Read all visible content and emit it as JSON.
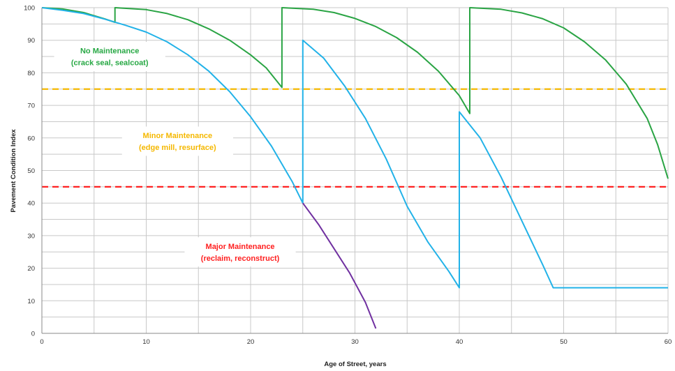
{
  "chart_data": {
    "type": "line",
    "xlabel": "Age of Street, years",
    "ylabel": "Pavement Condition Index",
    "xlim": [
      0,
      60
    ],
    "ylim": [
      0,
      100
    ],
    "x_ticks": [
      0,
      10,
      20,
      30,
      40,
      50,
      60
    ],
    "y_ticks": [
      0,
      10,
      20,
      30,
      40,
      50,
      60,
      70,
      80,
      90,
      100
    ],
    "grid": true,
    "thresholds": [
      {
        "value": 75,
        "color": "#f5b800",
        "style": "dashed"
      },
      {
        "value": 45,
        "color": "#ff2020",
        "style": "dashed"
      }
    ],
    "annotations": [
      {
        "lines": [
          "No Maintenance",
          "(crack seal, sealcoat)"
        ],
        "color": "#27a844",
        "x": 6.5,
        "y": 85
      },
      {
        "lines": [
          "Minor Maintenance",
          "(edge mill, resurface)"
        ],
        "color": "#f5b800",
        "x": 13,
        "y": 59
      },
      {
        "lines": [
          "Major Maintenance",
          "(reclaim, reconstruct)"
        ],
        "color": "#ff2020",
        "x": 19,
        "y": 25
      }
    ],
    "series": [
      {
        "color": "#2aa444",
        "points": [
          [
            0,
            100
          ],
          [
            2,
            99.6
          ],
          [
            4,
            98.5
          ],
          [
            6,
            96.6
          ],
          [
            7,
            95.5
          ],
          [
            7,
            100
          ],
          [
            10,
            99.4
          ],
          [
            12,
            98.2
          ],
          [
            14,
            96.3
          ],
          [
            16,
            93.5
          ],
          [
            18,
            90
          ],
          [
            20,
            85.5
          ],
          [
            21.5,
            81.5
          ],
          [
            23,
            75.5
          ],
          [
            23,
            100
          ],
          [
            26,
            99.5
          ],
          [
            28,
            98.5
          ],
          [
            30,
            96.7
          ],
          [
            32,
            94.2
          ],
          [
            34,
            90.8
          ],
          [
            36,
            86.3
          ],
          [
            38,
            80.5
          ],
          [
            40,
            73
          ],
          [
            41,
            67.5
          ],
          [
            41,
            100
          ],
          [
            44,
            99.5
          ],
          [
            46,
            98.4
          ],
          [
            48,
            96.6
          ],
          [
            50,
            93.8
          ],
          [
            52,
            89.5
          ],
          [
            54,
            84
          ],
          [
            56,
            76.5
          ],
          [
            58,
            66
          ],
          [
            59,
            58
          ],
          [
            60,
            47.5
          ]
        ]
      },
      {
        "color": "#22b2e8",
        "points": [
          [
            0,
            100
          ],
          [
            2,
            99.2
          ],
          [
            4,
            98.2
          ],
          [
            6,
            96.5
          ],
          [
            8,
            94.6
          ],
          [
            10,
            92.5
          ],
          [
            12,
            89.5
          ],
          [
            14,
            85.5
          ],
          [
            16,
            80.5
          ],
          [
            18,
            74.2
          ],
          [
            20,
            66.5
          ],
          [
            22,
            57.5
          ],
          [
            24,
            46.5
          ],
          [
            25,
            40
          ],
          [
            25,
            90
          ],
          [
            27,
            84.5
          ],
          [
            29,
            76
          ],
          [
            31,
            66
          ],
          [
            33,
            53.5
          ],
          [
            35,
            39
          ],
          [
            37,
            28
          ],
          [
            39,
            19
          ],
          [
            40,
            14
          ],
          [
            40,
            68
          ],
          [
            42,
            60
          ],
          [
            44,
            48
          ],
          [
            46,
            34.5
          ],
          [
            48,
            21
          ],
          [
            49,
            14
          ],
          [
            60,
            14
          ]
        ]
      },
      {
        "color": "#7030a0",
        "points": [
          [
            25,
            40
          ],
          [
            26.5,
            33.5
          ],
          [
            28,
            26
          ],
          [
            29.5,
            18.5
          ],
          [
            31,
            9.5
          ],
          [
            32,
            1.5
          ]
        ]
      }
    ]
  }
}
